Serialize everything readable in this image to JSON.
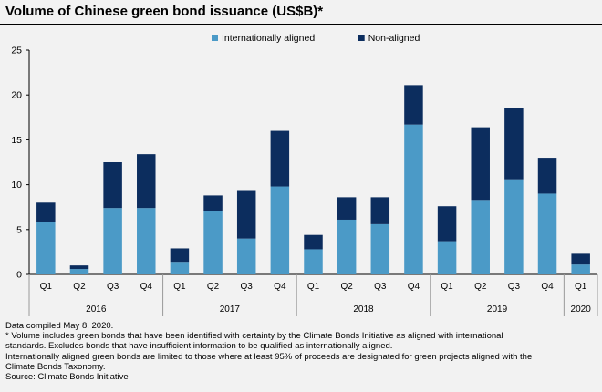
{
  "title": "Volume of Chinese green bond issuance (US$B)*",
  "chart_data": {
    "type": "bar",
    "stacked": true,
    "title": "Volume of Chinese green bond issuance (US$B)*",
    "categories": [
      "Q1",
      "Q2",
      "Q3",
      "Q4",
      "Q1",
      "Q2",
      "Q3",
      "Q4",
      "Q1",
      "Q2",
      "Q3",
      "Q4",
      "Q1",
      "Q2",
      "Q3",
      "Q4",
      "Q1"
    ],
    "year_groups": [
      {
        "year": "2016",
        "count": 4
      },
      {
        "year": "2017",
        "count": 4
      },
      {
        "year": "2018",
        "count": 4
      },
      {
        "year": "2019",
        "count": 4
      },
      {
        "year": "2020",
        "count": 1
      }
    ],
    "series": [
      {
        "name": "Internationally aligned",
        "color": "#4b9ac7",
        "values": [
          5.8,
          0.6,
          7.4,
          7.4,
          1.4,
          7.1,
          4.0,
          9.8,
          2.8,
          6.1,
          5.6,
          16.7,
          3.7,
          8.3,
          10.6,
          9.0,
          1.1
        ]
      },
      {
        "name": "Non-aligned",
        "color": "#0c2d5e",
        "values": [
          2.2,
          0.4,
          5.1,
          6.0,
          1.5,
          1.7,
          5.4,
          6.2,
          1.6,
          2.5,
          3.0,
          4.4,
          3.9,
          8.1,
          7.9,
          4.0,
          1.2
        ]
      }
    ],
    "ylim": [
      0,
      25
    ],
    "yticks": [
      0,
      5,
      10,
      15,
      20,
      25
    ],
    "xlabel": "",
    "ylabel": "",
    "legend_position": "top-center",
    "grid": false
  },
  "footnotes": [
    "Data compiled May 8, 2020.",
    "* Volume includes green bonds that have been identified with certainty by the Climate Bonds Initiative as aligned with international",
    "standards. Excludes bonds that have insufficient information to be qualified as internationally aligned.",
    "Internationally aligned green bonds are limited to those where at least 95% of proceeds are designated for green projects aligned with the",
    "Climate Bonds Taxonomy.",
    "Source: Climate Bonds Initiative"
  ]
}
